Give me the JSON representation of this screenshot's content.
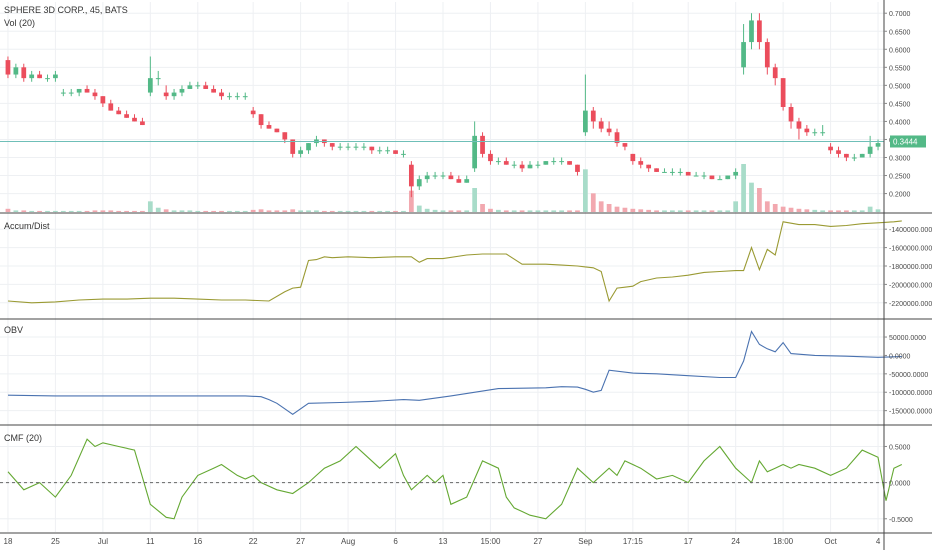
{
  "panels": {
    "price": {
      "title": "SPHERE 3D CORP., 45, BATS",
      "subtitle": "Vol (20)",
      "current_price_label": "0.3444"
    },
    "accum_dist": {
      "title": "Accum/Dist"
    },
    "obv": {
      "title": "OBV"
    },
    "cmf": {
      "title": "CMF (20)"
    }
  },
  "colors": {
    "up": "#53b987",
    "down": "#eb4d5c",
    "vol_up": "#a8dcc9",
    "vol_down": "#f2a8af",
    "ad_line": "#9a9a33",
    "obv_line": "#4a72b0",
    "cmf_line": "#64a832",
    "price_line": "#6fbfb8",
    "grid": "#eef0f3",
    "axis_text": "#4a4a4a"
  },
  "x_axis": {
    "ticks": [
      "18",
      "25",
      "Jul",
      "11",
      "16",
      "22",
      "27",
      "Aug",
      "6",
      "13",
      "15:00",
      "27",
      "Sep",
      "17:15",
      "17",
      "24",
      "18:00",
      "Oct",
      "4"
    ]
  },
  "chart_data": [
    {
      "type": "candlestick",
      "title": "SPHERE 3D CORP., 45, BATS",
      "ylim": [
        0.16,
        0.72
      ],
      "y_ticks": [
        "0.7000",
        "0.6500",
        "0.6000",
        "0.5500",
        "0.5000",
        "0.4500",
        "0.4000",
        "0.3500",
        "0.3000",
        "0.2500",
        "0.2000"
      ],
      "current_price": 0.3444,
      "ohlc": [
        [
          0.57,
          0.58,
          0.52,
          0.53
        ],
        [
          0.53,
          0.56,
          0.52,
          0.55
        ],
        [
          0.55,
          0.56,
          0.51,
          0.52
        ],
        [
          0.52,
          0.54,
          0.51,
          0.53
        ],
        [
          0.53,
          0.54,
          0.52,
          0.52
        ],
        [
          0.52,
          0.53,
          0.51,
          0.52
        ],
        [
          0.52,
          0.54,
          0.51,
          0.53
        ],
        [
          0.48,
          0.49,
          0.47,
          0.48
        ],
        [
          0.48,
          0.49,
          0.47,
          0.48
        ],
        [
          0.48,
          0.49,
          0.47,
          0.49
        ],
        [
          0.49,
          0.5,
          0.48,
          0.48
        ],
        [
          0.48,
          0.49,
          0.46,
          0.47
        ],
        [
          0.47,
          0.47,
          0.44,
          0.45
        ],
        [
          0.45,
          0.46,
          0.43,
          0.43
        ],
        [
          0.43,
          0.44,
          0.42,
          0.42
        ],
        [
          0.42,
          0.43,
          0.41,
          0.41
        ],
        [
          0.41,
          0.42,
          0.4,
          0.4
        ],
        [
          0.4,
          0.41,
          0.39,
          0.39
        ],
        [
          0.48,
          0.58,
          0.47,
          0.52
        ],
        [
          0.52,
          0.54,
          0.5,
          0.52
        ],
        [
          0.48,
          0.5,
          0.46,
          0.47
        ],
        [
          0.47,
          0.49,
          0.46,
          0.48
        ],
        [
          0.48,
          0.5,
          0.47,
          0.49
        ],
        [
          0.49,
          0.51,
          0.49,
          0.5
        ],
        [
          0.5,
          0.51,
          0.49,
          0.5
        ],
        [
          0.5,
          0.51,
          0.49,
          0.49
        ],
        [
          0.49,
          0.5,
          0.48,
          0.48
        ],
        [
          0.48,
          0.49,
          0.46,
          0.47
        ],
        [
          0.47,
          0.48,
          0.46,
          0.47
        ],
        [
          0.47,
          0.48,
          0.46,
          0.47
        ],
        [
          0.47,
          0.48,
          0.46,
          0.47
        ],
        [
          0.43,
          0.44,
          0.41,
          0.42
        ],
        [
          0.42,
          0.42,
          0.38,
          0.39
        ],
        [
          0.39,
          0.4,
          0.38,
          0.38
        ],
        [
          0.38,
          0.38,
          0.37,
          0.37
        ],
        [
          0.37,
          0.37,
          0.34,
          0.35
        ],
        [
          0.35,
          0.35,
          0.3,
          0.31
        ],
        [
          0.31,
          0.33,
          0.3,
          0.32
        ],
        [
          0.32,
          0.34,
          0.31,
          0.34
        ],
        [
          0.34,
          0.36,
          0.33,
          0.35
        ],
        [
          0.35,
          0.35,
          0.33,
          0.34
        ],
        [
          0.34,
          0.34,
          0.32,
          0.33
        ],
        [
          0.33,
          0.34,
          0.32,
          0.33
        ],
        [
          0.33,
          0.34,
          0.32,
          0.33
        ],
        [
          0.33,
          0.34,
          0.32,
          0.33
        ],
        [
          0.33,
          0.34,
          0.32,
          0.33
        ],
        [
          0.33,
          0.33,
          0.31,
          0.32
        ],
        [
          0.32,
          0.33,
          0.31,
          0.32
        ],
        [
          0.32,
          0.33,
          0.31,
          0.32
        ],
        [
          0.32,
          0.32,
          0.31,
          0.31
        ],
        [
          0.31,
          0.32,
          0.3,
          0.31
        ],
        [
          0.28,
          0.29,
          0.19,
          0.22
        ],
        [
          0.22,
          0.25,
          0.21,
          0.24
        ],
        [
          0.24,
          0.26,
          0.23,
          0.25
        ],
        [
          0.25,
          0.26,
          0.24,
          0.25
        ],
        [
          0.25,
          0.26,
          0.24,
          0.25
        ],
        [
          0.25,
          0.26,
          0.24,
          0.24
        ],
        [
          0.24,
          0.25,
          0.23,
          0.23
        ],
        [
          0.23,
          0.25,
          0.23,
          0.24
        ],
        [
          0.27,
          0.4,
          0.26,
          0.36
        ],
        [
          0.36,
          0.37,
          0.3,
          0.31
        ],
        [
          0.31,
          0.32,
          0.28,
          0.29
        ],
        [
          0.29,
          0.3,
          0.28,
          0.29
        ],
        [
          0.29,
          0.3,
          0.28,
          0.28
        ],
        [
          0.28,
          0.29,
          0.27,
          0.28
        ],
        [
          0.28,
          0.29,
          0.26,
          0.27
        ],
        [
          0.27,
          0.29,
          0.27,
          0.28
        ],
        [
          0.28,
          0.29,
          0.27,
          0.28
        ],
        [
          0.28,
          0.29,
          0.28,
          0.29
        ],
        [
          0.29,
          0.3,
          0.28,
          0.29
        ],
        [
          0.29,
          0.3,
          0.28,
          0.29
        ],
        [
          0.29,
          0.29,
          0.28,
          0.28
        ],
        [
          0.28,
          0.28,
          0.25,
          0.26
        ],
        [
          0.37,
          0.53,
          0.36,
          0.43
        ],
        [
          0.43,
          0.44,
          0.38,
          0.4
        ],
        [
          0.4,
          0.41,
          0.37,
          0.38
        ],
        [
          0.38,
          0.4,
          0.36,
          0.37
        ],
        [
          0.37,
          0.38,
          0.33,
          0.34
        ],
        [
          0.34,
          0.34,
          0.32,
          0.33
        ],
        [
          0.31,
          0.31,
          0.28,
          0.29
        ],
        [
          0.29,
          0.3,
          0.27,
          0.28
        ],
        [
          0.28,
          0.28,
          0.26,
          0.27
        ],
        [
          0.27,
          0.27,
          0.26,
          0.26
        ],
        [
          0.26,
          0.27,
          0.26,
          0.26
        ],
        [
          0.26,
          0.27,
          0.25,
          0.26
        ],
        [
          0.26,
          0.27,
          0.25,
          0.26
        ],
        [
          0.26,
          0.26,
          0.25,
          0.25
        ],
        [
          0.25,
          0.26,
          0.25,
          0.25
        ],
        [
          0.25,
          0.26,
          0.24,
          0.25
        ],
        [
          0.25,
          0.25,
          0.24,
          0.24
        ],
        [
          0.24,
          0.25,
          0.24,
          0.24
        ],
        [
          0.24,
          0.25,
          0.24,
          0.25
        ],
        [
          0.25,
          0.27,
          0.24,
          0.26
        ],
        [
          0.55,
          0.67,
          0.53,
          0.62
        ],
        [
          0.62,
          0.7,
          0.6,
          0.68
        ],
        [
          0.68,
          0.7,
          0.6,
          0.62
        ],
        [
          0.62,
          0.63,
          0.53,
          0.55
        ],
        [
          0.55,
          0.56,
          0.5,
          0.52
        ],
        [
          0.52,
          0.52,
          0.43,
          0.44
        ],
        [
          0.44,
          0.45,
          0.38,
          0.4
        ],
        [
          0.4,
          0.41,
          0.35,
          0.38
        ],
        [
          0.38,
          0.39,
          0.36,
          0.37
        ],
        [
          0.37,
          0.38,
          0.36,
          0.37
        ],
        [
          0.37,
          0.39,
          0.36,
          0.37
        ],
        [
          0.33,
          0.34,
          0.31,
          0.32
        ],
        [
          0.32,
          0.33,
          0.3,
          0.31
        ],
        [
          0.31,
          0.31,
          0.29,
          0.3
        ],
        [
          0.3,
          0.31,
          0.29,
          0.3
        ],
        [
          0.3,
          0.31,
          0.3,
          0.31
        ],
        [
          0.31,
          0.36,
          0.3,
          0.33
        ],
        [
          0.33,
          0.35,
          0.32,
          0.34
        ]
      ],
      "volume": [
        0.6,
        0.3,
        0.3,
        0.2,
        0.2,
        0.2,
        0.2,
        0.2,
        0.2,
        0.2,
        0.2,
        0.3,
        0.3,
        0.3,
        0.2,
        0.2,
        0.2,
        0.2,
        2.0,
        0.8,
        0.5,
        0.3,
        0.3,
        0.3,
        0.2,
        0.2,
        0.2,
        0.2,
        0.2,
        0.2,
        0.2,
        0.4,
        0.5,
        0.3,
        0.3,
        0.3,
        0.5,
        0.3,
        0.3,
        0.3,
        0.2,
        0.2,
        0.2,
        0.2,
        0.2,
        0.2,
        0.2,
        0.2,
        0.2,
        0.2,
        0.2,
        4.0,
        1.2,
        0.6,
        0.4,
        0.3,
        0.3,
        0.3,
        0.3,
        4.5,
        1.5,
        0.6,
        0.4,
        0.3,
        0.3,
        0.3,
        0.3,
        0.3,
        0.3,
        0.3,
        0.3,
        0.3,
        0.3,
        8.0,
        3.5,
        2.0,
        1.5,
        1.0,
        0.8,
        0.6,
        0.5,
        0.4,
        0.3,
        0.3,
        0.3,
        0.3,
        0.3,
        0.3,
        0.3,
        0.3,
        0.3,
        0.3,
        2.0,
        9.0,
        5.5,
        4.5,
        2.0,
        1.5,
        1.0,
        0.8,
        0.6,
        0.5,
        0.4,
        0.3,
        0.3,
        0.3,
        0.3,
        0.3,
        0.3,
        1.0,
        0.5
      ]
    },
    {
      "type": "line",
      "name": "Accum/Dist",
      "ylim": [
        -2300000,
        -1300000
      ],
      "y_ticks": [
        "-1400000.0000",
        "-1600000.0000",
        "-1800000.0000",
        "-2000000.0000",
        "-2200000.0000"
      ],
      "x": [
        0,
        3,
        6,
        9,
        12,
        15,
        18,
        21,
        24,
        27,
        30,
        33,
        35,
        36,
        37,
        38,
        39,
        40,
        41,
        43,
        46,
        49,
        51,
        52,
        53,
        55,
        58,
        60,
        63,
        65,
        68,
        70,
        72,
        73,
        74,
        75,
        76,
        77,
        78,
        79,
        80,
        82,
        84,
        86,
        88,
        90,
        92,
        93,
        94,
        95,
        96,
        97,
        98,
        100,
        102,
        104,
        106,
        108,
        110,
        112,
        113
      ],
      "values": [
        -2180000,
        -2200000,
        -2190000,
        -2170000,
        -2160000,
        -2160000,
        -2150000,
        -2150000,
        -2160000,
        -2170000,
        -2170000,
        -2180000,
        -2080000,
        -2040000,
        -2030000,
        -1740000,
        -1730000,
        -1700000,
        -1710000,
        -1700000,
        -1710000,
        -1700000,
        -1700000,
        -1760000,
        -1720000,
        -1720000,
        -1680000,
        -1670000,
        -1670000,
        -1780000,
        -1780000,
        -1790000,
        -1800000,
        -1810000,
        -1820000,
        -1860000,
        -2180000,
        -2040000,
        -2030000,
        -2020000,
        -1970000,
        -1930000,
        -1920000,
        -1900000,
        -1870000,
        -1860000,
        -1850000,
        -1850000,
        -1600000,
        -1840000,
        -1620000,
        -1680000,
        -1320000,
        -1350000,
        -1350000,
        -1370000,
        -1360000,
        -1340000,
        -1330000,
        -1320000,
        -1310000
      ]
    },
    {
      "type": "line",
      "name": "OBV",
      "ylim": [
        -170000,
        80000
      ],
      "y_ticks": [
        "50000.0000",
        "0.0000",
        "-50000.0000",
        "-100000.0000",
        "-150000.0000"
      ],
      "x": [
        0,
        6,
        12,
        18,
        24,
        30,
        32,
        33,
        34,
        35,
        36,
        38,
        42,
        46,
        50,
        52,
        56,
        62,
        68,
        70,
        72,
        73,
        74,
        75,
        76,
        79,
        82,
        86,
        90,
        92,
        93,
        94,
        95,
        96,
        97,
        98,
        99,
        102,
        106,
        110,
        113
      ],
      "values": [
        -108000,
        -110000,
        -110000,
        -110000,
        -110000,
        -110000,
        -112000,
        -120000,
        -130000,
        -145000,
        -160000,
        -130000,
        -128000,
        -125000,
        -120000,
        -122000,
        -110000,
        -90000,
        -88000,
        -85000,
        -86000,
        -92000,
        -100000,
        -95000,
        -40000,
        -48000,
        -50000,
        -55000,
        -60000,
        -60000,
        -15000,
        65000,
        30000,
        18000,
        10000,
        35000,
        5000,
        0,
        -2000,
        -5000,
        -3000
      ]
    },
    {
      "type": "line",
      "name": "CMF (20)",
      "ylim": [
        -0.6,
        0.7
      ],
      "y_ticks": [
        "0.5000",
        "0.0000",
        "-0.5000"
      ],
      "zero_line": 0,
      "x": [
        0,
        2,
        4,
        6,
        8,
        10,
        11,
        12,
        14,
        16,
        18,
        20,
        21,
        22,
        24,
        26,
        27,
        29,
        30,
        31,
        32,
        34,
        36,
        38,
        39,
        40,
        42,
        44,
        45,
        47,
        49,
        50,
        51,
        52,
        53,
        54,
        55,
        56,
        58,
        60,
        62,
        63,
        64,
        65,
        66,
        68,
        70,
        72,
        74,
        76,
        77,
        78,
        80,
        82,
        84,
        86,
        88,
        90,
        92,
        93,
        94,
        95,
        96,
        97,
        98,
        99,
        100,
        102,
        104,
        106,
        108,
        110,
        111,
        112,
        113
      ],
      "values": [
        0.15,
        -0.1,
        0.0,
        -0.2,
        0.1,
        0.6,
        0.5,
        0.55,
        0.5,
        0.45,
        -0.3,
        -0.48,
        -0.5,
        -0.2,
        0.1,
        0.2,
        0.25,
        0.1,
        0.05,
        0.1,
        0.0,
        -0.1,
        -0.15,
        0.0,
        0.1,
        0.2,
        0.3,
        0.5,
        0.4,
        0.2,
        0.4,
        0.1,
        -0.1,
        0.0,
        0.1,
        0.0,
        0.1,
        -0.3,
        -0.2,
        0.3,
        0.2,
        -0.2,
        -0.35,
        -0.4,
        -0.45,
        -0.5,
        -0.3,
        0.2,
        0.0,
        0.2,
        0.1,
        0.3,
        0.2,
        0.05,
        0.1,
        0.0,
        0.3,
        0.5,
        0.2,
        0.1,
        0.0,
        0.3,
        0.15,
        0.2,
        0.25,
        0.2,
        0.25,
        0.2,
        0.1,
        0.2,
        0.45,
        0.35,
        -0.25,
        0.2,
        0.25
      ]
    }
  ]
}
